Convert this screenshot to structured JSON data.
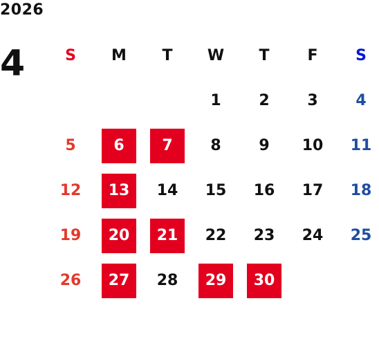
{
  "year": "2026",
  "month": "4",
  "colors": {
    "sunday": "#e23a2c",
    "saturday": "#1f4ea0",
    "weekday": "#111111",
    "holiday_bg": "#e3001f",
    "holiday_text": "#ffffff"
  },
  "weekdays": [
    {
      "label": "S",
      "color": "#e8001c"
    },
    {
      "label": "M",
      "color": "#111111"
    },
    {
      "label": "T",
      "color": "#111111"
    },
    {
      "label": "W",
      "color": "#111111"
    },
    {
      "label": "T",
      "color": "#111111"
    },
    {
      "label": "F",
      "color": "#111111"
    },
    {
      "label": "S",
      "color": "#0018d6"
    }
  ],
  "first_weekday_index": 3,
  "days_in_month": 30,
  "highlighted_days": [
    6,
    7,
    13,
    20,
    21,
    27,
    29,
    30
  ]
}
